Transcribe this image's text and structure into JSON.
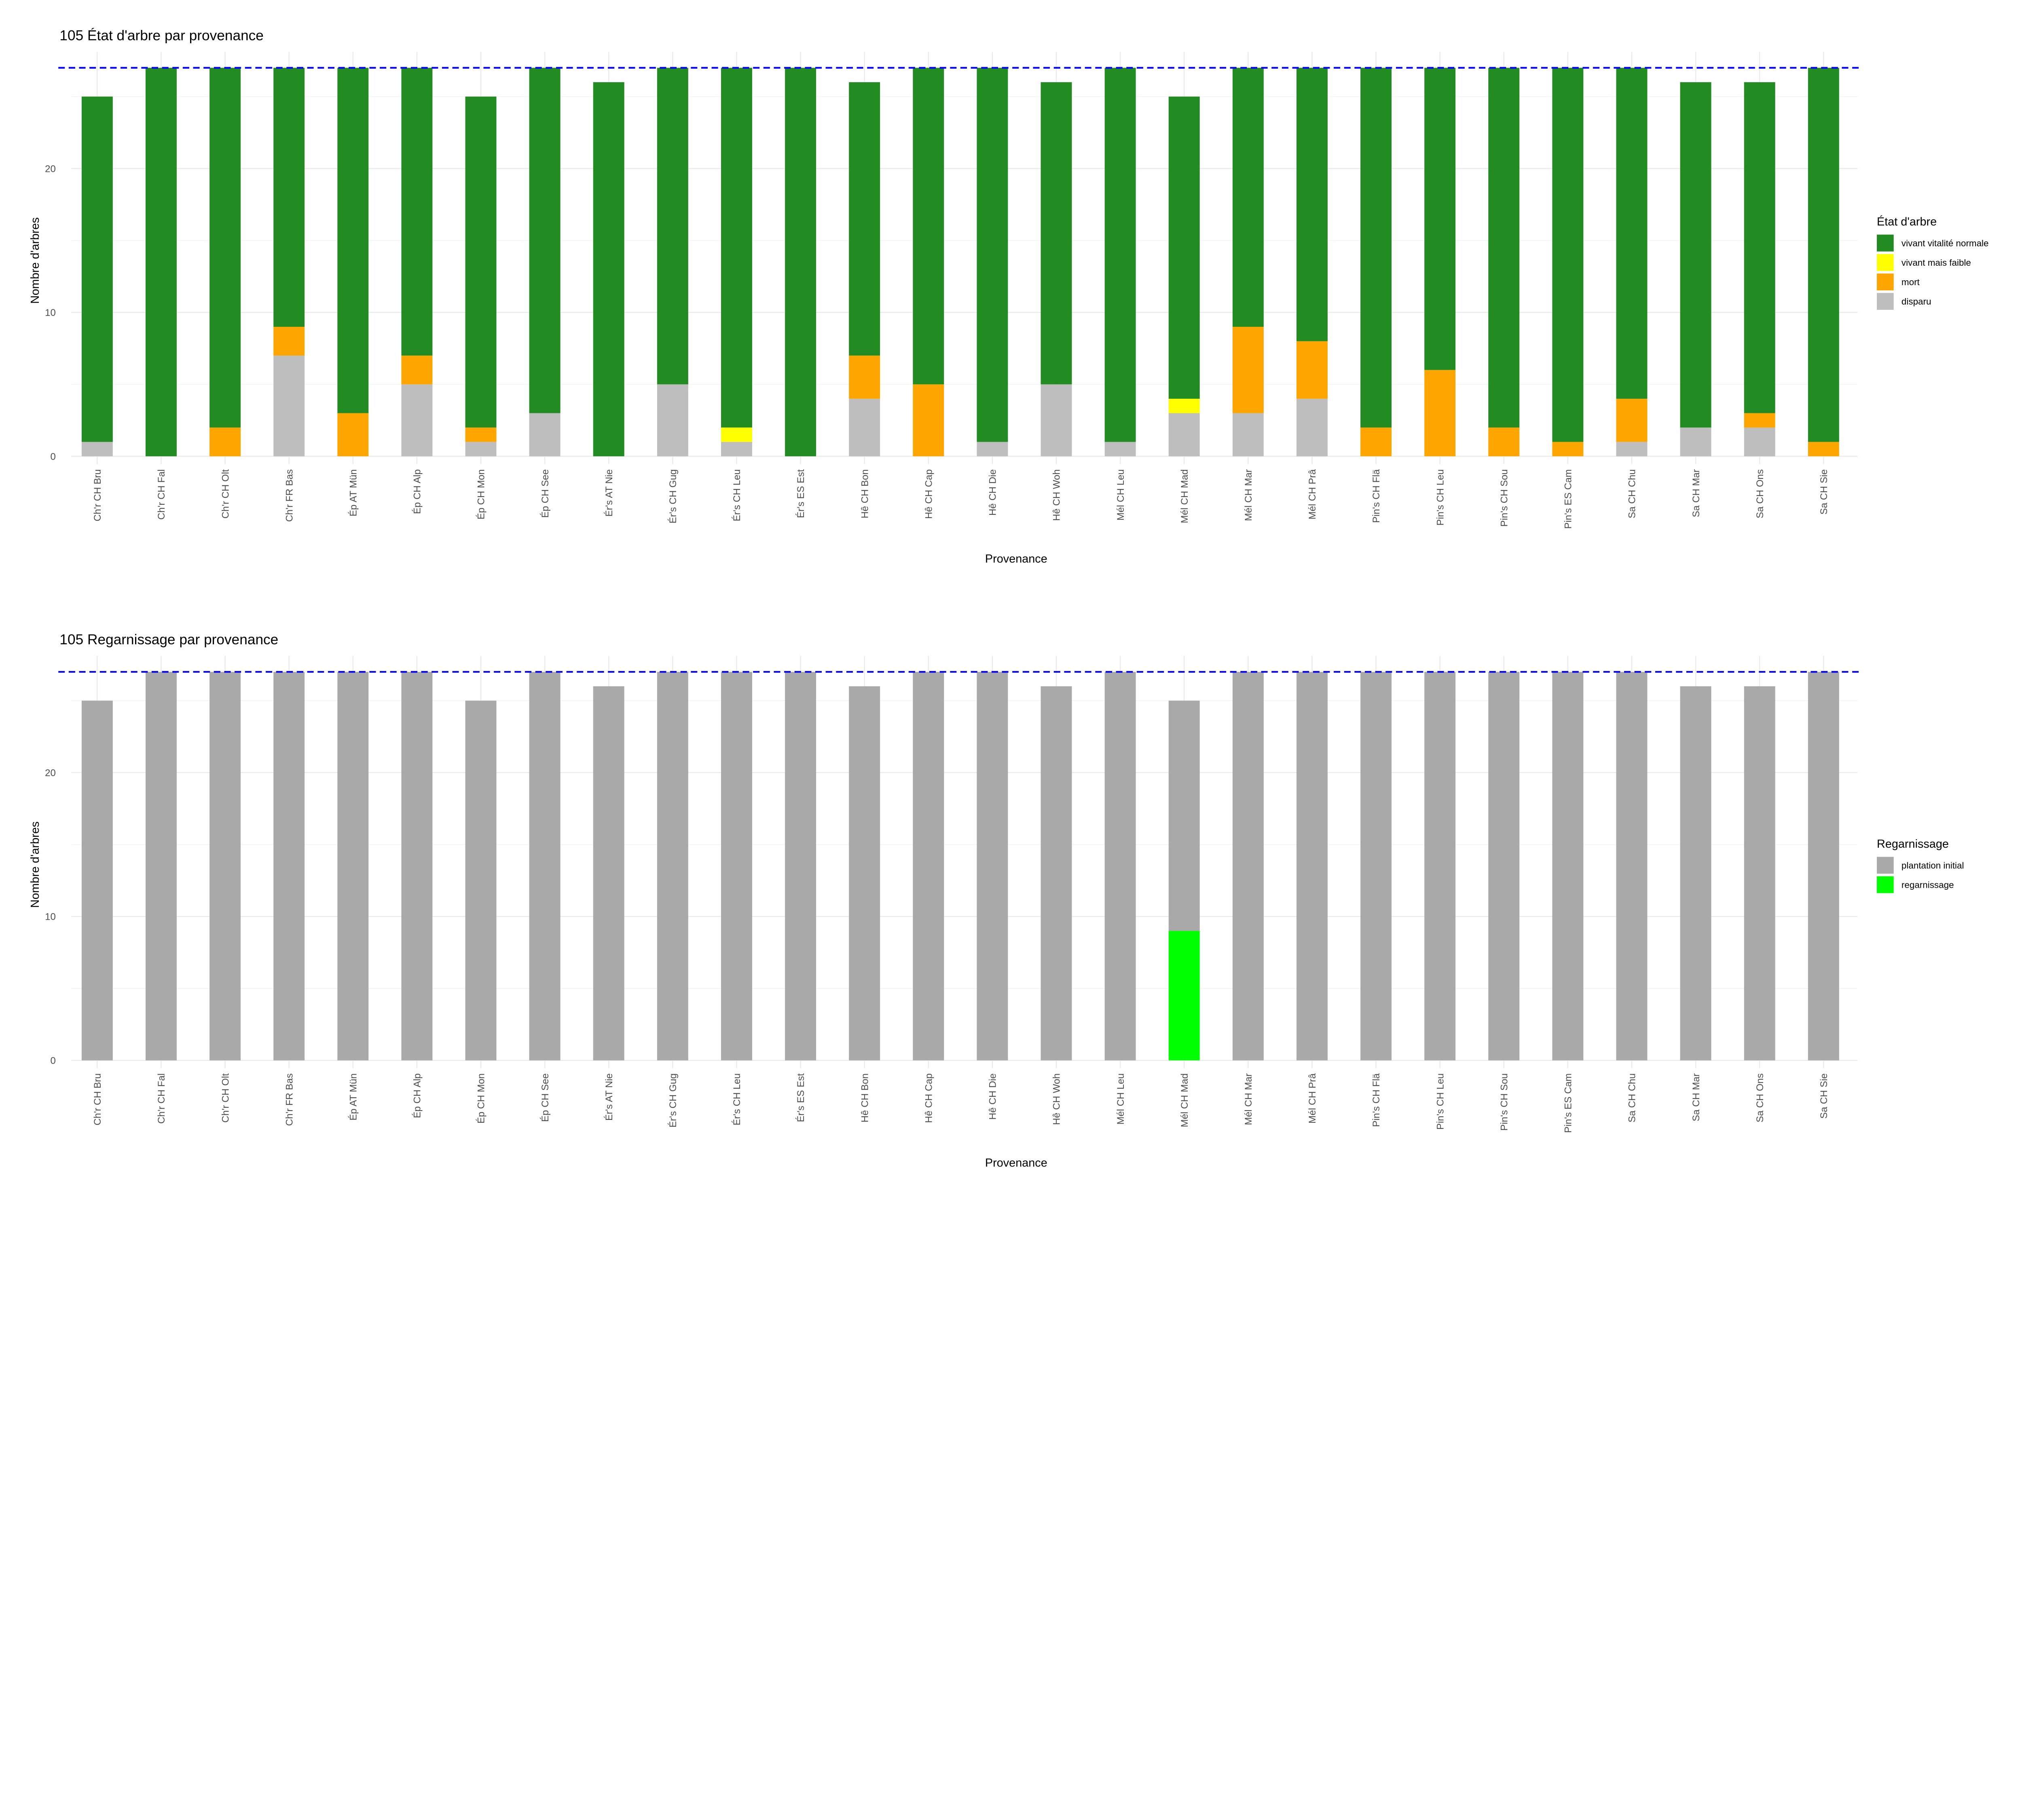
{
  "chart_data": [
    {
      "type": "bar",
      "stacked": true,
      "title": "105 État d'arbre par provenance",
      "xlabel": "Provenance",
      "ylabel": "Nombre d'arbres",
      "ylim": [
        0,
        28
      ],
      "yticks": [
        0,
        10,
        20
      ],
      "grid": true,
      "reference_line": {
        "y": 27,
        "color": "#0000FF",
        "style": "dashed"
      },
      "legend": {
        "title": "État d'arbre",
        "placement": "right"
      },
      "categories": [
        "Ch'r CH Bru",
        "Ch'r CH Fal",
        "Ch'r CH Olt",
        "Ch'r FR Bas",
        "Ép AT Mün",
        "Ép CH Alp",
        "Ép CH Mon",
        "Ép CH See",
        "Ér's AT Nie",
        "Ér's CH Gug",
        "Ér's CH Leu",
        "Ér's ES Est",
        "Hê CH Bon",
        "Hê CH Cap",
        "Hê CH Die",
        "Hê CH Woh",
        "Mél CH Leu",
        "Mél CH Mad",
        "Mél CH Mar",
        "Mél CH Prâ",
        "Pin's CH Flä",
        "Pin's CH Leu",
        "Pin's CH Sou",
        "Pin's ES Cam",
        "Sa CH Chu",
        "Sa CH Mar",
        "Sa CH Ons",
        "Sa CH Sie"
      ],
      "series": [
        {
          "name": "disparu",
          "color": "#BEBEBE",
          "values": [
            1,
            0,
            0,
            7,
            0,
            5,
            1,
            3,
            0,
            5,
            1,
            0,
            4,
            0,
            1,
            5,
            1,
            3,
            3,
            4,
            0,
            0,
            0,
            0,
            1,
            2,
            2,
            0
          ]
        },
        {
          "name": "mort",
          "color": "#FFA500",
          "values": [
            0,
            0,
            2,
            2,
            3,
            2,
            1,
            0,
            0,
            0,
            0,
            0,
            3,
            5,
            0,
            0,
            0,
            0,
            6,
            4,
            2,
            6,
            2,
            1,
            3,
            0,
            1,
            1
          ]
        },
        {
          "name": "vivant mais faible",
          "color": "#FFFF00",
          "values": [
            0,
            0,
            0,
            0,
            0,
            0,
            0,
            0,
            0,
            0,
            1,
            0,
            0,
            0,
            0,
            0,
            0,
            1,
            0,
            0,
            0,
            0,
            0,
            0,
            0,
            0,
            0,
            0
          ]
        },
        {
          "name": "vivant vitalité normale",
          "color": "#228B22",
          "values": [
            24,
            27,
            25,
            18,
            24,
            20,
            23,
            24,
            26,
            22,
            25,
            27,
            19,
            22,
            26,
            21,
            26,
            21,
            18,
            19,
            25,
            21,
            25,
            26,
            23,
            24,
            23,
            26
          ]
        }
      ],
      "legend_order": [
        "vivant vitalité normale",
        "vivant mais faible",
        "mort",
        "disparu"
      ]
    },
    {
      "type": "bar",
      "stacked": true,
      "title": "105 Regarnissage par provenance",
      "xlabel": "Provenance",
      "ylabel": "Nombre d'arbres",
      "ylim": [
        0,
        28
      ],
      "yticks": [
        0,
        10,
        20
      ],
      "grid": true,
      "reference_line": {
        "y": 27,
        "color": "#0000FF",
        "style": "dashed"
      },
      "legend": {
        "title": "Regarnissage",
        "placement": "right"
      },
      "categories": [
        "Ch'r CH Bru",
        "Ch'r CH Fal",
        "Ch'r CH Olt",
        "Ch'r FR Bas",
        "Ép AT Mün",
        "Ép CH Alp",
        "Ép CH Mon",
        "Ép CH See",
        "Ér's AT Nie",
        "Ér's CH Gug",
        "Ér's CH Leu",
        "Ér's ES Est",
        "Hê CH Bon",
        "Hê CH Cap",
        "Hê CH Die",
        "Hê CH Woh",
        "Mél CH Leu",
        "Mél CH Mad",
        "Mél CH Mar",
        "Mél CH Prâ",
        "Pin's CH Flä",
        "Pin's CH Leu",
        "Pin's CH Sou",
        "Pin's ES Cam",
        "Sa CH Chu",
        "Sa CH Mar",
        "Sa CH Ons",
        "Sa CH Sie"
      ],
      "series": [
        {
          "name": "regarnissage",
          "color": "#00FF00",
          "values": [
            0,
            0,
            0,
            0,
            0,
            0,
            0,
            0,
            0,
            0,
            0,
            0,
            0,
            0,
            0,
            0,
            0,
            9,
            0,
            0,
            0,
            0,
            0,
            0,
            0,
            0,
            0,
            0
          ]
        },
        {
          "name": "plantation initial",
          "color": "#A9A9A9",
          "values": [
            25,
            27,
            27,
            27,
            27,
            27,
            25,
            27,
            26,
            27,
            27,
            27,
            26,
            27,
            27,
            26,
            27,
            16,
            27,
            27,
            27,
            27,
            27,
            27,
            27,
            26,
            26,
            27
          ]
        }
      ],
      "legend_order": [
        "plantation initial",
        "regarnissage"
      ]
    }
  ]
}
